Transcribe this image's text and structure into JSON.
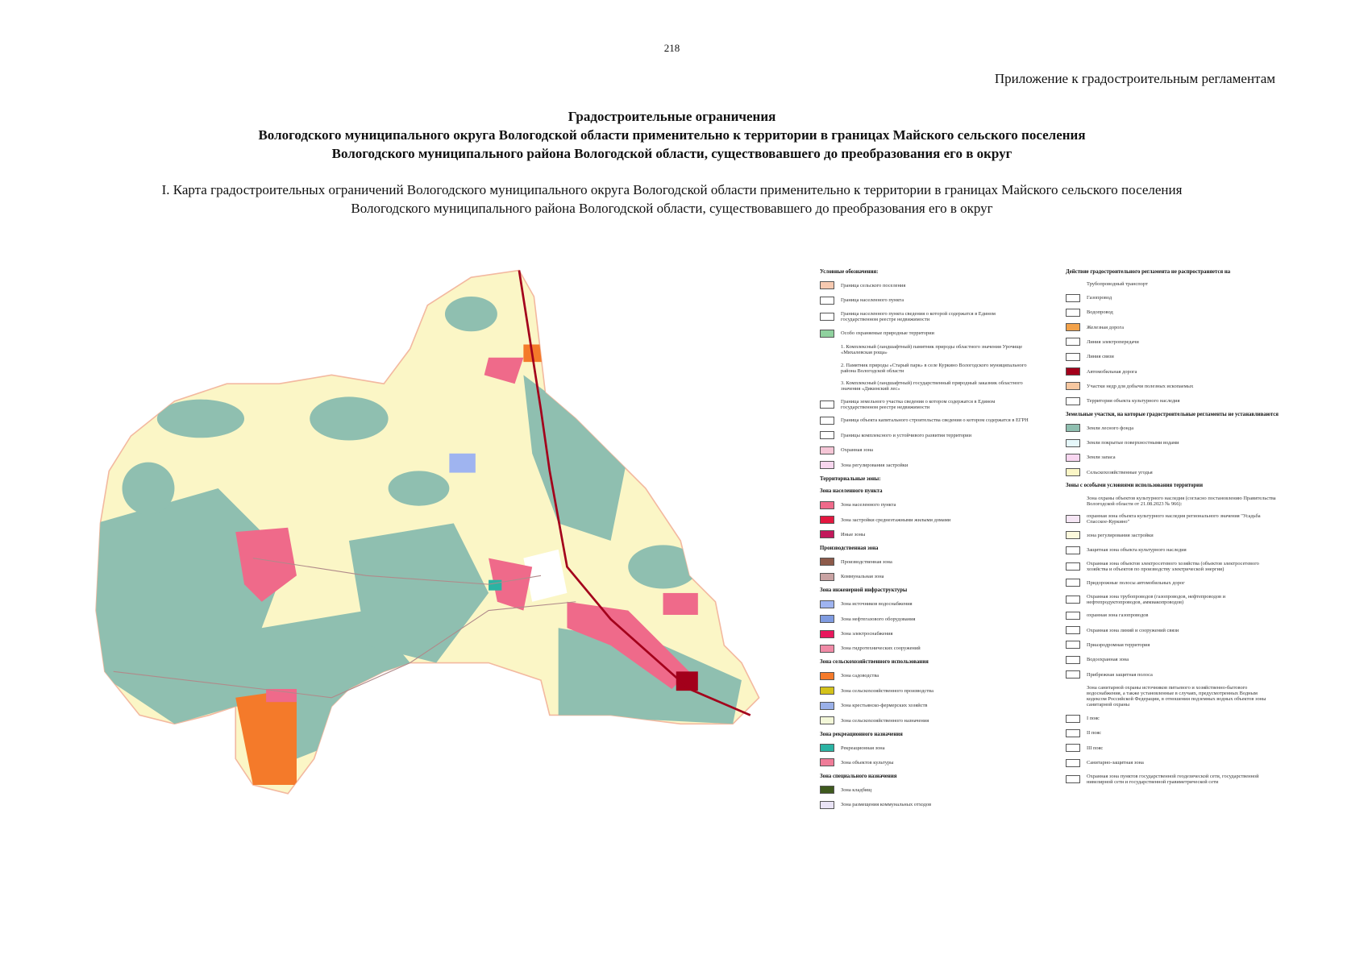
{
  "page_number": "218",
  "appendix": "Приложение к градостроительным регламентам",
  "title": [
    "Градостроительные ограничения",
    "Вологодского муниципального округа Вологодской области применительно к территории в границах Майского сельского поселения",
    "Вологодского муниципального района Вологодской области, существовавшего до преобразования его в округ"
  ],
  "subtitle": [
    "I. Карта градостроительных ограничений Вологодского муниципального округа Вологодской области применительно к территории в границах Майского сельского поселения",
    "Вологодского муниципального района Вологодской области, существовавшего до преобразования его в округ"
  ],
  "legend": {
    "left": [
      {
        "heading": "Условные обозначения:"
      },
      {
        "label": "Граница сельского поселения",
        "color": "#f6c9b0"
      },
      {
        "label": "Граница населенного пункта",
        "color": "#ffffff"
      },
      {
        "label": "Граница населенного пункта сведения о которой содержатся в Едином государственном реестре недвижимости",
        "color": "#ffffff"
      },
      {
        "label": "Особо охраняемые природные территории",
        "color": "#8fd19e"
      },
      {
        "label": "1. Комплексный (ландшафтный) памятник природы областного значения Урочище «Михалевская роща»"
      },
      {
        "label": "2. Памятник природы «Старый парк» в селе Куркино Вологодского муниципального района Вологодской области"
      },
      {
        "label": "3. Комплексный (ландшафтный) государственный природный заказник областного значения «Дикинский лес»"
      },
      {
        "label": "Граница земельного участка сведения о котором содержатся в Едином государственном реестре недвижимости",
        "color": "#ffffff"
      },
      {
        "label": "Граница объекта капитального строительства сведения о котором содержатся в ЕГРН",
        "color": "#ffffff"
      },
      {
        "label": "Границы комплексного и устойчивого развития территории",
        "color": "#ffffff"
      },
      {
        "label": "Охранная зона",
        "color": "#f5c6d6"
      },
      {
        "label": "Зона регулирования застройки",
        "color": "#f7d6ee"
      },
      {
        "heading": "Территориальные зоны:"
      },
      {
        "heading": "Зона населенного пункта"
      },
      {
        "label": "Зона населенного пункта",
        "color": "#ef6a8a"
      },
      {
        "label": "Зона застройки среднеэтажными жилыми домами",
        "color": "#e3173f"
      },
      {
        "label": "Иные зоны",
        "color": "#c2185b"
      },
      {
        "heading": "Производственная зона"
      },
      {
        "label": "Производственная зона",
        "color": "#8d5a4a"
      },
      {
        "label": "Коммунальная зона",
        "color": "#c9a3a3"
      },
      {
        "heading": "Зона инженерной инфраструктуры"
      },
      {
        "label": "Зона источников водоснабжения",
        "color": "#9fb4f0"
      },
      {
        "label": "Зона нефтегазового оборудования",
        "color": "#7f9be0"
      },
      {
        "label": "Зона электроснабжения",
        "color": "#e8175d"
      },
      {
        "label": "Зона гидротехнических сооружений",
        "color": "#f08aa6"
      },
      {
        "heading": "Зона сельскохозяйственного использования"
      },
      {
        "label": "Зона садоводства",
        "color": "#f47a2a"
      },
      {
        "label": "Зона сельскохозяйственного производства",
        "color": "#d4c21a"
      },
      {
        "label": "Зона крестьянско-фермерских хозяйств",
        "color": "#9ab0e8"
      },
      {
        "label": "Зона сельскохозяйственного назначения",
        "color": "#f3f7d8"
      },
      {
        "heading": "Зона рекреационного назначения"
      },
      {
        "label": "Рекреационная зона",
        "color": "#2bb3a3"
      },
      {
        "label": "Зона объектов культуры",
        "color": "#ef7c98"
      },
      {
        "heading": "Зона специального назначения"
      },
      {
        "label": "Зона кладбищ",
        "color": "#3f5a1e"
      },
      {
        "label": "Зона размещения коммунальных отходов",
        "color": "#e9e3f5"
      }
    ],
    "right": [
      {
        "heading": "Действие градостроительного регламента не распространяется на"
      },
      {
        "label": "Трубопроводный транспорт"
      },
      {
        "label": "Газопровод",
        "color": "#ffffff"
      },
      {
        "label": "Водопровод",
        "color": "#ffffff"
      },
      {
        "label": "Железная дорога",
        "color": "#f3a24a"
      },
      {
        "label": "Линия электропередачи",
        "color": "#ffffff"
      },
      {
        "label": "Линия связи",
        "color": "#ffffff"
      },
      {
        "label": "Автомобильная дорога",
        "color": "#a3001b"
      },
      {
        "label": "Участки недр для добычи полезных ископаемых",
        "color": "#f6c7a0"
      },
      {
        "label": "Территория объекта культурного наследия",
        "color": "#ffffff"
      },
      {
        "heading": "Земельные участки, на которые градостроительные регламенты не устанавливаются"
      },
      {
        "label": "Земли лесного фонда",
        "color": "#8fbfb0"
      },
      {
        "label": "Земли покрытые поверхностными водами",
        "color": "#e6f8fb"
      },
      {
        "label": "Земли запаса",
        "color": "#f8d6f0"
      },
      {
        "label": "Сельскохозяйственные угодья",
        "color": "#fbf6c6"
      },
      {
        "heading": "Зоны с особыми условиями использования территории"
      },
      {
        "label": "Зона охраны объектов культурного наследия (согласно постановлению Правительства Вологодской области от 21.08.2023 № 966):"
      },
      {
        "label": "охранная зона объекта культурного наследия регионального значения \"Усадьба Спасское-Куркино\"",
        "color": "#f6e6f5"
      },
      {
        "label": "зона регулирования застройки",
        "color": "#fbf8dc"
      },
      {
        "label": "Защитная зона объекта культурного наследия",
        "color": "#ffffff"
      },
      {
        "label": "Охранная зона объектов электросетевого хозяйства (объектов электросетевого хозяйства и объектов по производству электрической энергии)",
        "color": "#ffffff"
      },
      {
        "label": "Придорожные полосы автомобильных дорог",
        "color": "#ffffff"
      },
      {
        "label": "Охранная зона трубопроводов (газопроводов, нефтепроводов и нефтепродуктопроводов, аммиакопроводов)",
        "color": "#ffffff"
      },
      {
        "label": "охранная зона газопроводов",
        "color": "#ffffff"
      },
      {
        "label": "Охранная зона линий и сооружений связи",
        "color": "#ffffff"
      },
      {
        "label": "Приаэродромная территория",
        "color": "#ffffff"
      },
      {
        "label": "Водоохранная зона",
        "color": "#ffffff"
      },
      {
        "label": "Прибрежная защитная полоса",
        "color": "#ffffff"
      },
      {
        "label": "Зона санитарной охраны источников питьевого и хозяйственно-бытового водоснабжения, а также установленные в случаях, предусмотренных Водным кодексом Российской Федерации, в отношении подземных водных объектов зоны санитарной охраны"
      },
      {
        "label": "I пояс",
        "color": "#ffffff"
      },
      {
        "label": "II пояс",
        "color": "#ffffff"
      },
      {
        "label": "III пояс",
        "color": "#ffffff"
      },
      {
        "label": "Санитарно-защитная зона",
        "color": "#ffffff"
      },
      {
        "label": "Охранная зона пунктов государственной геодезической сети, государственной нивелирной сети и государственной гравиметрической сети",
        "color": "#ffffff"
      }
    ]
  }
}
